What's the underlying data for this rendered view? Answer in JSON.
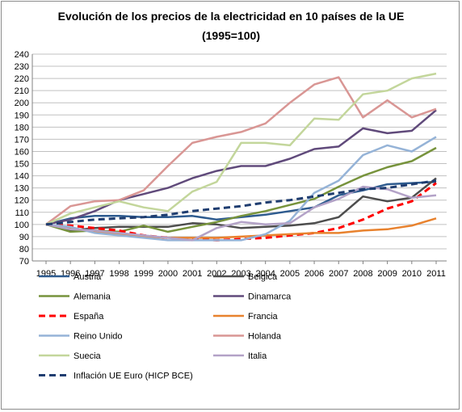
{
  "chart_data": {
    "type": "line",
    "title": "Evolución de los precios de la electricidad en 10 países de la UE",
    "subtitle": "(1995=100)",
    "xlabel": "",
    "ylabel": "",
    "x": [
      "1995",
      "1996",
      "1997",
      "1998",
      "1999",
      "2000",
      "2001",
      "2002",
      "2003",
      "2004",
      "2005",
      "2006",
      "2007",
      "2008",
      "2009",
      "2010",
      "2011"
    ],
    "ylim": [
      70,
      240
    ],
    "yticks": [
      70,
      80,
      90,
      100,
      110,
      120,
      130,
      140,
      150,
      160,
      170,
      180,
      190,
      200,
      210,
      220,
      230,
      240
    ],
    "grid": "horizontal",
    "legend_position": "bottom",
    "series": [
      {
        "name": "Austria",
        "color": "#2e5b8f",
        "dash": "solid",
        "values": [
          100,
          105,
          107,
          107,
          106,
          106,
          107,
          104,
          106,
          108,
          111,
          114,
          124,
          128,
          133,
          134,
          135
        ]
      },
      {
        "name": "Belgica",
        "color": "#4d4d4d",
        "dash": "solid",
        "values": [
          100,
          95,
          97,
          98,
          98,
          98,
          101,
          100,
          97,
          98,
          99,
          101,
          106,
          123,
          119,
          122,
          138
        ]
      },
      {
        "name": "Alemania",
        "color": "#77933c",
        "dash": "solid",
        "values": [
          100,
          94,
          95,
          94,
          99,
          94,
          98,
          102,
          107,
          111,
          116,
          121,
          131,
          140,
          147,
          152,
          163
        ]
      },
      {
        "name": "Dinamarca",
        "color": "#604a7b",
        "dash": "solid",
        "values": [
          100,
          104,
          111,
          120,
          125,
          130,
          138,
          144,
          148,
          148,
          154,
          162,
          164,
          179,
          175,
          177,
          194
        ]
      },
      {
        "name": "España",
        "color": "#ff0000",
        "dash": "dashed",
        "values": [
          100,
          99,
          97,
          95,
          91,
          89,
          88,
          87,
          88,
          89,
          91,
          93,
          97,
          104,
          113,
          119,
          134
        ]
      },
      {
        "name": "Francia",
        "color": "#e8822e",
        "dash": "solid",
        "values": [
          100,
          97,
          94,
          92,
          90,
          89,
          89,
          89,
          90,
          91,
          92,
          93,
          93,
          95,
          96,
          99,
          105
        ]
      },
      {
        "name": "Reino Unido",
        "color": "#95b3d7",
        "dash": "solid",
        "values": [
          100,
          98,
          93,
          91,
          89,
          87,
          87,
          87,
          87,
          92,
          103,
          126,
          136,
          157,
          165,
          160,
          172
        ]
      },
      {
        "name": "Holanda",
        "color": "#d99694",
        "dash": "solid",
        "values": [
          100,
          115,
          119,
          120,
          128,
          148,
          167,
          172,
          176,
          183,
          200,
          215,
          221,
          188,
          202,
          188,
          195
        ]
      },
      {
        "name": "Suecia",
        "color": "#c3d69b",
        "dash": "solid",
        "values": [
          100,
          109,
          114,
          119,
          114,
          111,
          127,
          135,
          167,
          167,
          165,
          187,
          186,
          207,
          210,
          220,
          224
        ]
      },
      {
        "name": "Italia",
        "color": "#b3a2c7",
        "dash": "solid",
        "values": [
          100,
          96,
          95,
          93,
          91,
          89,
          87,
          97,
          102,
          100,
          101,
          114,
          121,
          131,
          129,
          122,
          124
        ]
      },
      {
        "name": "Inflación UE Euro (HICP BCE)",
        "color": "#1f3d70",
        "dash": "dashed",
        "values": [
          100,
          102,
          104,
          105,
          106,
          108,
          111,
          113,
          115,
          118,
          120,
          123,
          126,
          129,
          130,
          133,
          136
        ]
      }
    ]
  }
}
